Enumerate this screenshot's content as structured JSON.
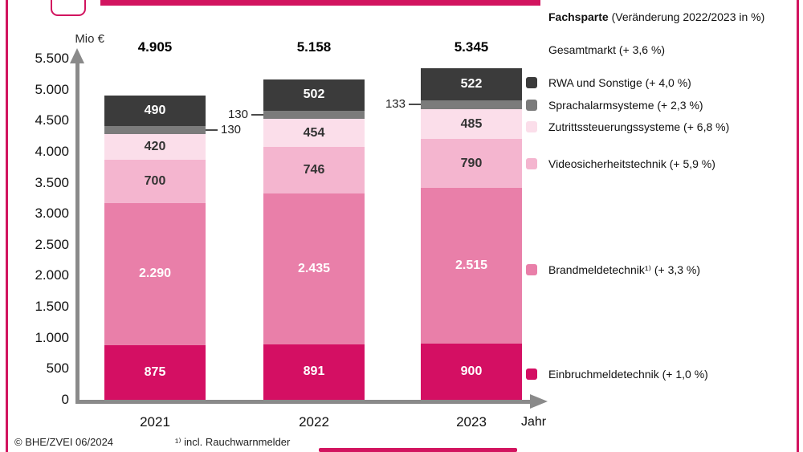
{
  "theme": {
    "accent": "#d2145f",
    "axis_gray": "#8a8a8a"
  },
  "chart_data": {
    "type": "stacked-bar",
    "unit_label": "Mio €",
    "x_axis_title": "Jahr",
    "categories": [
      "2021",
      "2022",
      "2023"
    ],
    "totals": [
      4905,
      5158,
      5345
    ],
    "totals_labels": [
      "4.905",
      "5.158",
      "5.345"
    ],
    "ylim": [
      0,
      5500
    ],
    "y_ticks": [
      "5.500",
      "5.000",
      "4.500",
      "4.000",
      "3.500",
      "3.000",
      "2.500",
      "2.000",
      "1.500",
      "1.000",
      "500",
      "0"
    ],
    "series": [
      {
        "name": "Einbruchmeldetechnik",
        "change": "+ 1,0 %",
        "color": "#d40f63",
        "values": [
          875,
          891,
          900
        ],
        "labels": [
          "875",
          "891",
          "900"
        ],
        "label_style": "light"
      },
      {
        "name": "Brandmeldetechnik¹⁾",
        "change": "+ 3,3 %",
        "color": "#e97fa9",
        "values": [
          2290,
          2435,
          2515
        ],
        "labels": [
          "2.290",
          "2.435",
          "2.515"
        ],
        "label_style": "light"
      },
      {
        "name": "Videosicherheitstechnik",
        "change": "+ 5,9 %",
        "color": "#f4b5cf",
        "values": [
          700,
          746,
          790
        ],
        "labels": [
          "700",
          "746",
          "790"
        ],
        "label_style": "dark"
      },
      {
        "name": "Zutrittssteuerungssysteme",
        "change": "+ 6,8 %",
        "color": "#fbdeea",
        "values": [
          420,
          454,
          485
        ],
        "labels": [
          "420",
          "454",
          "485"
        ],
        "label_style": "dark"
      },
      {
        "name": "Sprachalarmsysteme",
        "change": "+ 2,3 %",
        "color": "#7b7b7b",
        "values": [
          130,
          130,
          133
        ],
        "labels": [
          "130",
          "130",
          "133"
        ],
        "label_style": "callout",
        "callout_sides": [
          "right",
          "left",
          "left"
        ]
      },
      {
        "name": "RWA und Sonstige",
        "change": "+ 4,0 %",
        "color": "#3b3b3b",
        "values": [
          490,
          502,
          522
        ],
        "labels": [
          "490",
          "502",
          "522"
        ],
        "label_style": "light"
      }
    ]
  },
  "legend": {
    "title_bold": "Fachsparte",
    "title_rest": " (Veränderung 2022/2023 in %)",
    "total_line": "Gesamtmarkt (+ 3,6 %)",
    "items": [
      {
        "label": "RWA und Sonstige (+ 4,0 %)",
        "color": "#3b3b3b"
      },
      {
        "label": "Sprachalarmsysteme (+ 2,3 %)",
        "color": "#7b7b7b"
      },
      {
        "label": "Zutrittssteuerungssysteme (+ 6,8 %)",
        "color": "#fbdeea"
      },
      {
        "label": "Videosicherheitstechnik (+ 5,9 %)",
        "color": "#f4b5cf"
      },
      {
        "label": "Brandmeldetechnik¹⁾ (+ 3,3 %)",
        "color": "#e97fa9"
      },
      {
        "label": "Einbruchmeldetechnik (+ 1,0 %)",
        "color": "#d40f63"
      }
    ]
  },
  "footer": {
    "source": "© BHE/ZVEI 06/2024",
    "footnote": "¹⁾ incl. Rauchwarnmelder"
  }
}
